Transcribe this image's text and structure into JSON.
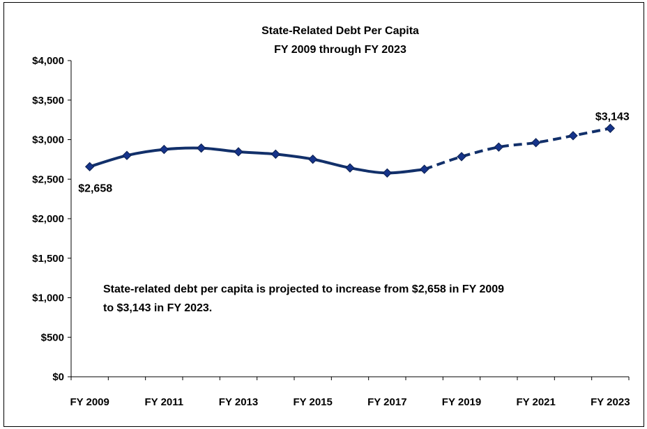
{
  "chart_data": {
    "type": "line",
    "title": "State-Related Debt Per Capita",
    "subtitle": "FY 2009 through FY 2023",
    "x": [
      2009,
      2010,
      2011,
      2012,
      2013,
      2014,
      2015,
      2016,
      2017,
      2018,
      2019,
      2020,
      2021,
      2022,
      2023
    ],
    "x_tick_labels": [
      "FY 2009",
      "FY 2011",
      "FY 2013",
      "FY 2015",
      "FY 2017",
      "FY 2019",
      "FY 2021",
      "FY 2023"
    ],
    "y_tick_labels": [
      "$0",
      "$500",
      "$1,000",
      "$1,500",
      "$2,000",
      "$2,500",
      "$3,000",
      "$3,500",
      "$4,000"
    ],
    "ylim": [
      0,
      4000
    ],
    "y_step": 500,
    "grid": false,
    "series": [
      {
        "values": [
          2658,
          2800,
          2876,
          2893,
          2846,
          2816,
          2752,
          2642,
          2578,
          2625,
          2785,
          2906,
          2962,
          3050,
          3143
        ],
        "actual_through": 2018,
        "projected_from": 2018,
        "color": "#12306a",
        "marker_color": "#16348a",
        "actual_style": "solid",
        "projected_style": "dashed"
      }
    ],
    "data_labels": [
      {
        "x": 2009,
        "text": "$2,658"
      },
      {
        "x": 2023,
        "text": "$3,143"
      }
    ],
    "annotation": {
      "lines": [
        "State-related debt per capita is projected to increase  from $2,658 in FY 2009",
        "to $3,143 in FY 2023."
      ]
    }
  }
}
